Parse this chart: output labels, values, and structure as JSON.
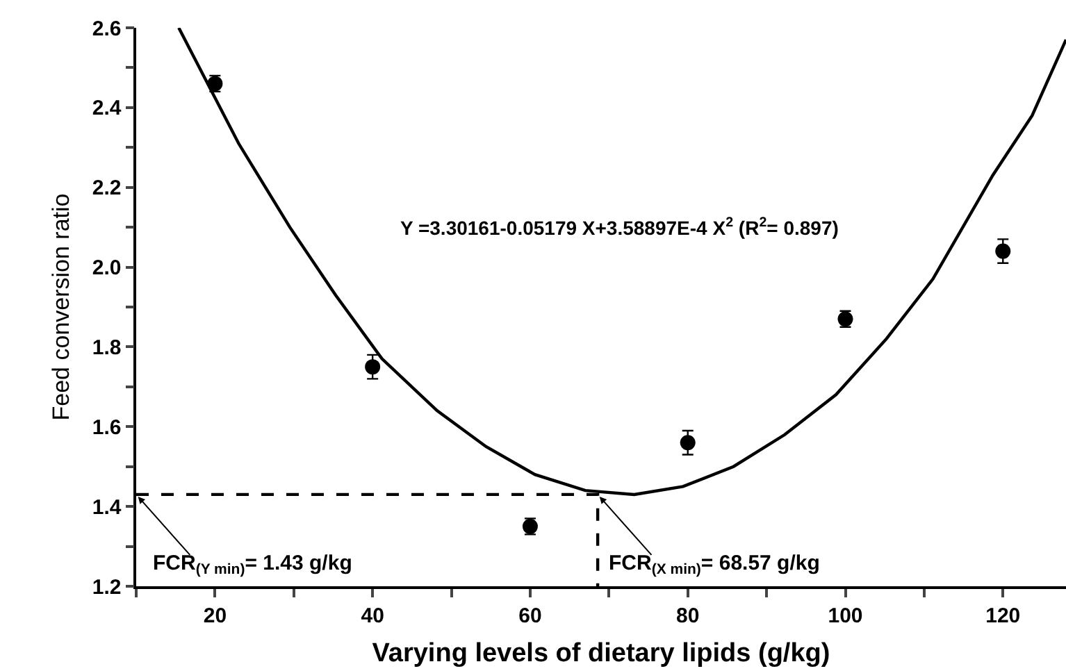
{
  "chart_data": {
    "type": "scatter",
    "xlabel": "Varying levels of dietary lipids (g/kg)",
    "ylabel": "Feed conversion ratio",
    "xlim": [
      10,
      128
    ],
    "xticks": [
      {
        "value": 10,
        "label": null
      },
      20,
      {
        "value": 30,
        "label": null
      },
      40,
      {
        "value": 50,
        "label": null
      },
      60,
      {
        "value": 70,
        "label": null
      },
      80,
      {
        "value": 90,
        "label": null
      },
      100,
      {
        "value": 110,
        "label": null
      },
      120
    ],
    "ylim": [
      1.2,
      2.6
    ],
    "yticks": [
      1.2,
      {
        "value": 1.3,
        "label": null
      },
      1.4,
      {
        "value": 1.5,
        "label": null
      },
      1.6,
      {
        "value": 1.7,
        "label": null
      },
      1.8,
      {
        "value": 1.9,
        "label": null
      },
      {
        "value": 2.0,
        "label": "2.0"
      },
      {
        "value": 2.1,
        "label": null
      },
      2.2,
      {
        "value": 2.3,
        "label": null
      },
      2.4,
      {
        "value": 2.5,
        "label": null
      },
      2.6
    ],
    "grid": false,
    "series": [
      {
        "type": "line",
        "color": "#000000",
        "marker": "none",
        "line_style": "solid",
        "x": [
          15.4,
          23.0,
          29.5,
          35.3,
          41.2,
          48.2,
          54.4,
          60.6,
          67.0,
          73.2,
          79.4,
          85.8,
          92.3,
          98.8,
          105.2,
          111.1,
          118.7,
          123.7,
          128.0
        ],
        "values": [
          2.6,
          2.31,
          2.1,
          1.93,
          1.77,
          1.64,
          1.55,
          1.48,
          1.44,
          1.43,
          1.45,
          1.5,
          1.58,
          1.68,
          1.82,
          1.97,
          2.23,
          2.38,
          2.57
        ]
      },
      {
        "color": "#000000",
        "marker": "circle",
        "x": [
          20,
          40,
          60,
          80,
          100,
          120
        ],
        "values": [
          2.46,
          1.75,
          1.35,
          1.56,
          1.87,
          2.04
        ],
        "errors": [
          0.02,
          0.03,
          0.02,
          0.03,
          0.02,
          0.03
        ]
      },
      {
        "type": "line",
        "color": "#000000",
        "marker": "none",
        "line_style": "dashed",
        "x": [
          10,
          68.57,
          68.57
        ],
        "values": [
          1.43,
          1.43,
          1.2
        ]
      }
    ],
    "annotations": [
      "Y =3.30161-0.05179 X+3.58897E-4 X$^{2}$ (R$^{2}$= 0.897)",
      {
        "text": "FCR$_{(Y min)}$= 1.43 g/kg",
        "x": 10,
        "y": 1.43
      },
      {
        "text": "FCR$_{(X min)}$= 68.57 g/kg",
        "x": 68.57,
        "y": 1.43
      }
    ]
  }
}
